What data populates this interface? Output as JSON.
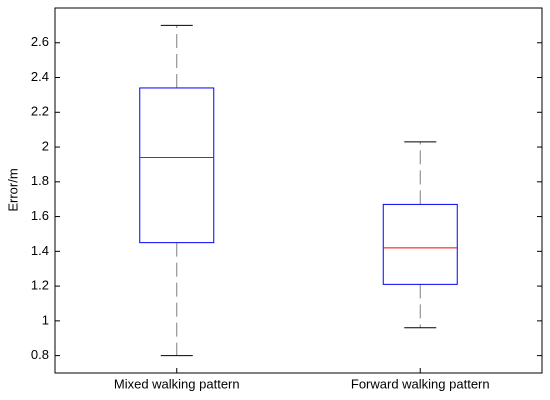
{
  "chart_data": {
    "type": "box",
    "ylabel": "Error/m",
    "categories": [
      "Mixed walking pattern",
      "Forward walking pattern"
    ],
    "boxes": [
      {
        "min": 0.8,
        "q1": 1.45,
        "median": 1.94,
        "q3": 2.34,
        "max": 2.7
      },
      {
        "min": 0.96,
        "q1": 1.21,
        "median": 1.42,
        "q3": 1.67,
        "max": 2.03
      }
    ],
    "box_color": "#0000ff",
    "median_color": "#ff0000",
    "whisker_color": "#000000",
    "ylim": [
      0.7,
      2.8
    ],
    "yticks": [
      0.8,
      1,
      1.2,
      1.4,
      1.6,
      1.8,
      2,
      2.2,
      2.4,
      2.6
    ],
    "grid": false
  }
}
